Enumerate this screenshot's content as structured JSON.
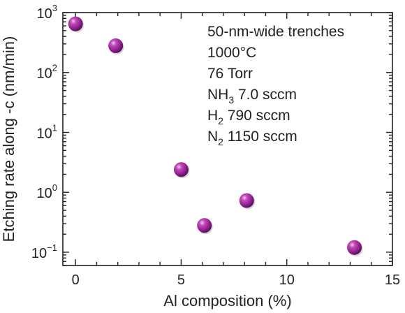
{
  "chart_data": {
    "type": "scatter",
    "xlabel": "Al composition  (%)",
    "ylabel": "Etching rate along -c  (nm/min)",
    "x_scale": "linear",
    "y_scale": "log",
    "xlim": [
      -0.6,
      15
    ],
    "ylim": [
      0.06,
      1000
    ],
    "x_ticks": [
      0,
      5,
      10,
      15
    ],
    "x_tick_labels": [
      "0",
      "5",
      "10",
      "15"
    ],
    "y_ticks": [
      0.1,
      1,
      10,
      100,
      1000
    ],
    "y_tick_labels": [
      {
        "base": "10",
        "exp": "−1"
      },
      {
        "base": "10",
        "exp": "0"
      },
      {
        "base": "10",
        "exp": "1"
      },
      {
        "base": "10",
        "exp": "2"
      },
      {
        "base": "10",
        "exp": "3"
      }
    ],
    "grid": false,
    "legend": "none",
    "marker_color": "#8b1a8b",
    "series": [
      {
        "points": [
          {
            "x": 0.0,
            "y": 650
          },
          {
            "x": 1.9,
            "y": 280
          },
          {
            "x": 5.0,
            "y": 2.4
          },
          {
            "x": 6.1,
            "y": 0.28
          },
          {
            "x": 8.1,
            "y": 0.73
          },
          {
            "x": 13.2,
            "y": 0.12
          }
        ]
      }
    ],
    "annotations": [
      {
        "parts": [
          {
            "t": "50-nm-wide trenches"
          }
        ]
      },
      {
        "parts": [
          {
            "t": "1000°C"
          }
        ]
      },
      {
        "parts": [
          {
            "t": "76 Torr"
          }
        ]
      },
      {
        "parts": [
          {
            "t": "NH"
          },
          {
            "t": "3",
            "sub": true
          },
          {
            "t": " 7.0 sccm"
          }
        ]
      },
      {
        "parts": [
          {
            "t": "H"
          },
          {
            "t": "2",
            "sub": true
          },
          {
            "t": " 790 sccm"
          }
        ]
      },
      {
        "parts": [
          {
            "t": "N"
          },
          {
            "t": "2",
            "sub": true
          },
          {
            "t": " 1150 sccm"
          }
        ]
      }
    ]
  }
}
